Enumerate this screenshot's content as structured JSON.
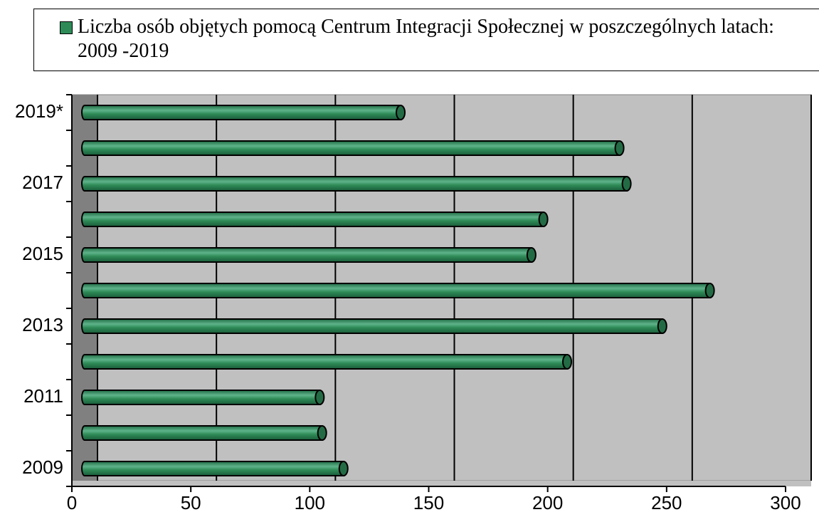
{
  "chart_data": {
    "type": "bar",
    "orientation": "horizontal",
    "categories": [
      "2009",
      null,
      "2011",
      null,
      "2013",
      null,
      "2015",
      null,
      "2017",
      null,
      "2019*"
    ],
    "series": [
      {
        "name": "Liczba osób objętych pomocą Centrum Integracji Społecznej w poszczególnych latach: 2009 -2019",
        "color": "#2e8b57",
        "values": [
          110,
          101,
          100,
          204,
          244,
          264,
          189,
          194,
          229,
          226,
          134
        ]
      }
    ],
    "xlim": [
      0,
      300
    ],
    "xticks": [
      0,
      50,
      100,
      150,
      200,
      250,
      300
    ],
    "grid": true,
    "legend": "top"
  }
}
